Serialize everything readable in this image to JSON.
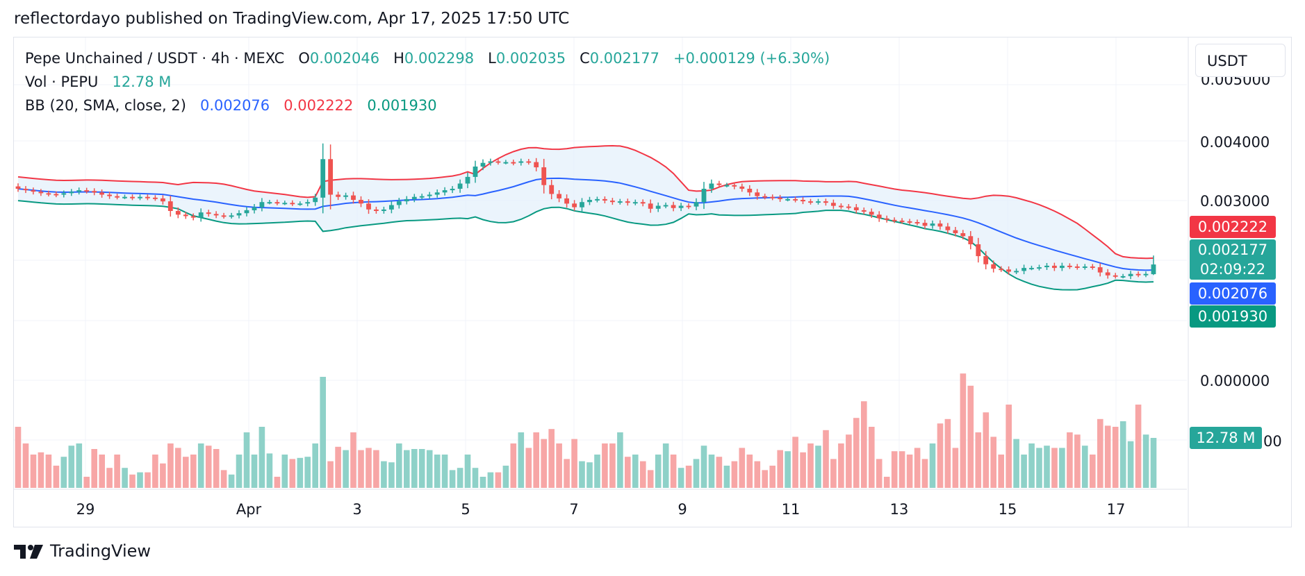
{
  "header": {
    "published": "reflectordayo published on TradingView.com, Apr 17, 2025 17:50 UTC"
  },
  "legend": {
    "symbol": "Pepe Unchained / USDT · 4h · MEXC",
    "o_label": "O",
    "o": "0.002046",
    "h_label": "H",
    "h": "0.002298",
    "l_label": "L",
    "l": "0.002035",
    "c_label": "C",
    "c": "0.002177",
    "change": "+0.000129 (+6.30%)",
    "vol_label": "Vol · PEPU",
    "vol": "12.78 M",
    "bb_label": "BB (20, SMA, close, 2)",
    "bb_basis": "0.002076",
    "bb_upper": "0.002222",
    "bb_lower": "0.001930"
  },
  "price_scale": {
    "currency": "USDT",
    "ticks": [
      "0.004000",
      "0.003000",
      "0.000000"
    ],
    "clipped_top": "0.005000",
    "clipped_bottom": "00"
  },
  "badges": {
    "bb_upper": "0.002222",
    "last": "0.002177",
    "countdown": "02:09:22",
    "bb_basis": "0.002076",
    "bb_lower": "0.001930",
    "volume": "12.78 M"
  },
  "time_axis": [
    "29",
    "Apr",
    "3",
    "5",
    "7",
    "9",
    "11",
    "13",
    "15",
    "17"
  ],
  "footer": {
    "brand": "TradingView"
  },
  "colors": {
    "up": "#26a69a",
    "down": "#ef5350",
    "vol_up": "#8ed1c8",
    "vol_down": "#f7a6a6",
    "bb_basis": "#2962ff",
    "bb_upper": "#f23645",
    "bb_lower": "#089981",
    "bb_fill": "#e3f0fb",
    "grid": "#f0f3fa"
  },
  "chart_data": {
    "type": "candlestick",
    "title": "Pepe Unchained / USDT · 4h · MEXC",
    "timeframe": "4h",
    "x_labels": [
      "29",
      "Apr",
      "3",
      "5",
      "7",
      "9",
      "11",
      "13",
      "15",
      "17"
    ],
    "ylim": [
      0.0014,
      0.0047
    ],
    "last_candle": {
      "open": 0.002046,
      "high": 0.002298,
      "low": 0.002035,
      "close": 0.002177,
      "volume_m": 12.78
    },
    "bollinger": {
      "period": 20,
      "stddev": 2,
      "basis": 0.002076,
      "upper": 0.002222,
      "lower": 0.00193
    },
    "series": [
      {
        "name": "close",
        "values": [
          0.0032,
          0.00318,
          0.00316,
          0.00314,
          0.00313,
          0.00312,
          0.00314,
          0.00316,
          0.00318,
          0.00317,
          0.00315,
          0.00312,
          0.0031,
          0.00309,
          0.00309,
          0.00308,
          0.00309,
          0.00308,
          0.00307,
          0.00303,
          0.0029,
          0.00285,
          0.00283,
          0.00281,
          0.00288,
          0.00286,
          0.00284,
          0.00283,
          0.00284,
          0.00287,
          0.00291,
          0.00295,
          0.00302,
          0.00302,
          0.00301,
          0.00301,
          0.003,
          0.003,
          0.00302,
          0.00308,
          0.0036,
          0.00312,
          0.00309,
          0.00311,
          0.00305,
          0.003,
          0.00292,
          0.0029,
          0.00292,
          0.00298,
          0.00303,
          0.00306,
          0.00309,
          0.0031,
          0.00312,
          0.00315,
          0.00318,
          0.0032,
          0.00327,
          0.00336,
          0.0035,
          0.00355,
          0.00357,
          0.00356,
          0.00356,
          0.00355,
          0.00357,
          0.00356,
          0.00349,
          0.00325,
          0.00313,
          0.00307,
          0.003,
          0.00295,
          0.00302,
          0.00305,
          0.00306,
          0.00304,
          0.00302,
          0.00303,
          0.00301,
          0.00302,
          0.003,
          0.00293,
          0.00297,
          0.00298,
          0.00294,
          0.00297,
          0.00296,
          0.00302,
          0.0032,
          0.00327,
          0.00325,
          0.00325,
          0.00323,
          0.0032,
          0.00315,
          0.0031,
          0.00309,
          0.00308,
          0.00306,
          0.00306,
          0.00305,
          0.00303,
          0.00302,
          0.00303,
          0.00301,
          0.00297,
          0.00296,
          0.00295,
          0.00291,
          0.00289,
          0.00285,
          0.0028,
          0.00278,
          0.00277,
          0.00276,
          0.00275,
          0.00274,
          0.0027,
          0.00273,
          0.00269,
          0.00264,
          0.0026,
          0.00256,
          0.00245,
          0.00229,
          0.00218,
          0.00212,
          0.00211,
          0.00208,
          0.00209,
          0.00213,
          0.00213,
          0.00214,
          0.00216,
          0.00213,
          0.00216,
          0.00215,
          0.00214,
          0.00215,
          0.00214,
          0.00207,
          0.00203,
          0.00202,
          0.00202,
          0.00205,
          0.00204,
          0.00205,
          0.00218
        ]
      },
      {
        "name": "volume_relative",
        "values": [
          0.55,
          0.4,
          0.3,
          0.32,
          0.3,
          0.2,
          0.28,
          0.38,
          0.4,
          0.1,
          0.35,
          0.3,
          0.18,
          0.3,
          0.18,
          0.12,
          0.14,
          0.14,
          0.3,
          0.22,
          0.4,
          0.36,
          0.28,
          0.3,
          0.4,
          0.38,
          0.35,
          0.16,
          0.12,
          0.3,
          0.5,
          0.3,
          0.55,
          0.31,
          0.1,
          0.3,
          0.26,
          0.27,
          0.28,
          0.4,
          1.0,
          0.24,
          0.37,
          0.34,
          0.5,
          0.34,
          0.36,
          0.34,
          0.24,
          0.23,
          0.4,
          0.34,
          0.35,
          0.35,
          0.34,
          0.3,
          0.3,
          0.16,
          0.18,
          0.3,
          0.18,
          0.1,
          0.14,
          0.14,
          0.2,
          0.4,
          0.5,
          0.36,
          0.5,
          0.44,
          0.53,
          0.4,
          0.26,
          0.44,
          0.24,
          0.23,
          0.3,
          0.4,
          0.4,
          0.5,
          0.28,
          0.3,
          0.24,
          0.16,
          0.3,
          0.4,
          0.3,
          0.18,
          0.2,
          0.26,
          0.38,
          0.3,
          0.28,
          0.2,
          0.24,
          0.36,
          0.3,
          0.24,
          0.16,
          0.2,
          0.34,
          0.33,
          0.46,
          0.32,
          0.4,
          0.38,
          0.52,
          0.26,
          0.4,
          0.48,
          0.63,
          0.78,
          0.55,
          0.26,
          0.1,
          0.33,
          0.33,
          0.3,
          0.36,
          0.26,
          0.4,
          0.58,
          0.62,
          0.36,
          1.03,
          0.92,
          0.5,
          0.68,
          0.46,
          0.3,
          0.75,
          0.44,
          0.3,
          0.4,
          0.36,
          0.38,
          0.36,
          0.36,
          0.5,
          0.48,
          0.38,
          0.3,
          0.62,
          0.56,
          0.55,
          0.6,
          0.42,
          0.75,
          0.48,
          0.45
        ]
      }
    ]
  }
}
